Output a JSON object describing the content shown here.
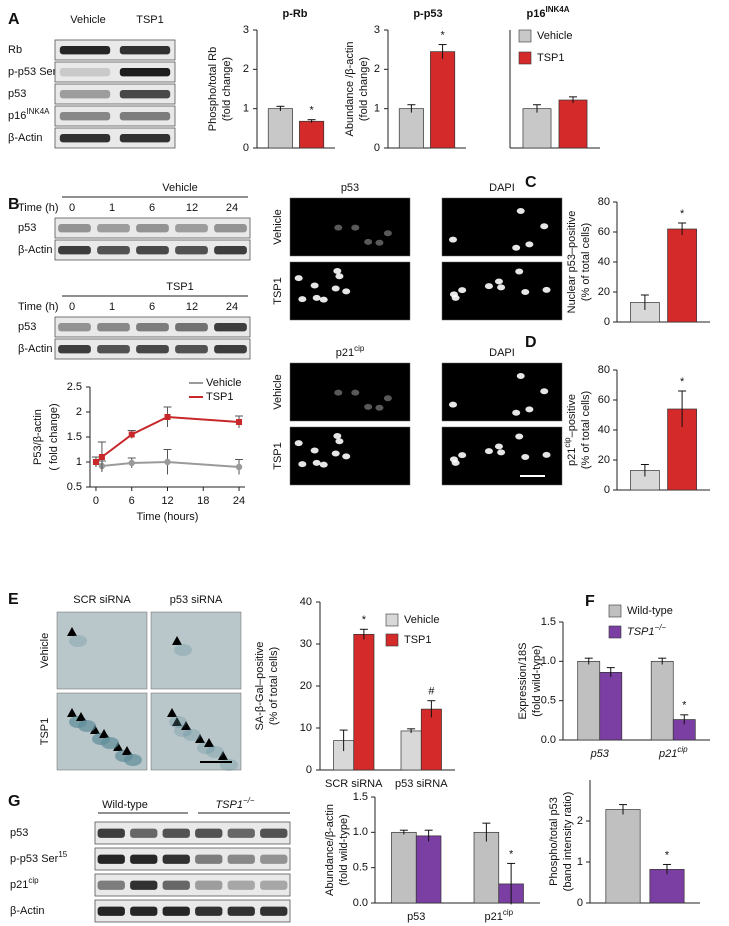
{
  "panel_labels": [
    "A",
    "B",
    "C",
    "D",
    "E",
    "F",
    "G"
  ],
  "blot_A": {
    "columns": [
      "Vehicle",
      "TSP1"
    ],
    "rows": [
      "Rb",
      {
        "text": "p-p53 Ser",
        "sup": "15"
      },
      "p53",
      {
        "text": "p16",
        "sup": "INK4A"
      },
      "β-Actin"
    ]
  },
  "blot_B": {
    "groups": [
      {
        "title": "Vehicle",
        "time_label": "Time (h)",
        "times": [
          "0",
          "1",
          "6",
          "12",
          "24"
        ],
        "rows": [
          "p53",
          "β-Actin"
        ]
      },
      {
        "title": "TSP1",
        "time_label": "Time (h)",
        "times": [
          "0",
          "1",
          "6",
          "12",
          "24"
        ],
        "rows": [
          "p53",
          "β-Actin"
        ]
      }
    ]
  },
  "micrographs_C": {
    "columns": [
      "p53",
      "DAPI"
    ],
    "rows": [
      "Vehicle",
      "TSP1"
    ]
  },
  "micrographs_D": {
    "columns": [
      {
        "text": "p21",
        "sup": "cip"
      },
      "DAPI"
    ],
    "rows": [
      "Vehicle",
      "TSP1"
    ]
  },
  "micrographs_E": {
    "columns": [
      "SCR siRNA",
      "p53 siRNA"
    ],
    "rows": [
      "Vehicle",
      "TSP1"
    ]
  },
  "blot_G": {
    "groups": [
      "Wild-type",
      {
        "text": "TSP1",
        "sup": "−/−"
      }
    ],
    "rows": [
      "p53",
      {
        "text": "p-p53 Ser",
        "sup": "15"
      },
      {
        "text": "p21",
        "sup": "cip"
      },
      "β-Actin"
    ]
  },
  "chart_data": [
    {
      "type": "bar",
      "title": "p-Rb",
      "ylabel": [
        "Phospho/total Rb",
        "(fold change)"
      ],
      "ylim": [
        0,
        3
      ],
      "yticks": [
        0,
        1,
        2,
        3
      ],
      "values": [
        1.0,
        0.68
      ],
      "errors": [
        0.06,
        0.04
      ],
      "colors": [
        "#c8c8c8",
        "#d42a2a"
      ],
      "significance": [
        null,
        "*"
      ]
    },
    {
      "type": "bar",
      "title": "p-p53",
      "ylabel": [
        "Abundance /β-actin",
        "(fold change)"
      ],
      "ylim": [
        0,
        3
      ],
      "yticks": [
        0,
        1,
        2,
        3
      ],
      "values": [
        1.0,
        2.45
      ],
      "errors": [
        0.1,
        0.18
      ],
      "colors": [
        "#c8c8c8",
        "#d42a2a"
      ],
      "significance": [
        null,
        "*"
      ]
    },
    {
      "type": "bar",
      "title": {
        "text": "p16",
        "sup": "INK4A"
      },
      "ylim": [
        0,
        3
      ],
      "values": [
        1.0,
        1.22
      ],
      "errors": [
        0.1,
        0.08
      ],
      "colors": [
        "#c8c8c8",
        "#d42a2a"
      ],
      "legend": [
        {
          "name": "Vehicle",
          "color": "#c8c8c8"
        },
        {
          "name": "TSP1",
          "color": "#d42a2a"
        }
      ]
    },
    {
      "type": "line",
      "ylabel": [
        "P53/β-actin",
        "( fold change)"
      ],
      "xlabel": "Time (hours)",
      "x": [
        0,
        1,
        6,
        12,
        24
      ],
      "xlim": [
        -1,
        25
      ],
      "xticks": [
        0,
        6,
        12,
        18,
        24
      ],
      "ylim": [
        0.5,
        2.5
      ],
      "yticks": [
        0.5,
        1,
        1.5,
        2,
        2.5
      ],
      "series": [
        {
          "name": "Vehicle",
          "color": "#9a9a9a",
          "marker": "circle",
          "values": [
            1.0,
            0.92,
            0.98,
            1.0,
            0.9
          ],
          "errors": [
            0.1,
            0.1,
            0.1,
            0.25,
            0.15
          ]
        },
        {
          "name": "TSP1",
          "color": "#c8282a",
          "marker": "square",
          "values": [
            1.0,
            1.1,
            1.55,
            1.9,
            1.8
          ],
          "errors": [
            0.1,
            0.3,
            0.08,
            0.2,
            0.12
          ]
        }
      ]
    },
    {
      "type": "bar",
      "ylabel": [
        "Nuclear p53–positive",
        "(% of total cells)"
      ],
      "ylim": [
        0,
        80
      ],
      "yticks": [
        0,
        20,
        40,
        60,
        80
      ],
      "values": [
        13,
        62
      ],
      "errors": [
        5,
        4
      ],
      "colors": [
        "#d8d8d8",
        "#d42a2a"
      ],
      "significance": [
        null,
        "*"
      ]
    },
    {
      "type": "bar",
      "ylabel": [
        {
          "text": "p21",
          "sup": "cip",
          "tail": "–positive"
        },
        "(% of total cells)"
      ],
      "ylim": [
        0,
        80
      ],
      "yticks": [
        0,
        20,
        40,
        60,
        80
      ],
      "values": [
        13,
        54
      ],
      "errors": [
        4,
        12
      ],
      "colors": [
        "#d8d8d8",
        "#d42a2a"
      ],
      "significance": [
        null,
        "*"
      ]
    },
    {
      "type": "bar",
      "ylabel": [
        "SA-β-Gal–positive",
        "(% of total cells)"
      ],
      "ylim": [
        0,
        40
      ],
      "yticks": [
        0,
        10,
        20,
        30,
        40
      ],
      "categories": [
        "SCR siRNA",
        "p53 siRNA"
      ],
      "series": [
        {
          "name": "Vehicle",
          "color": "#d8d8d8",
          "values": [
            7,
            9.3
          ],
          "errors": [
            2.5,
            0.5
          ],
          "significance": [
            null,
            null
          ]
        },
        {
          "name": "TSP1",
          "color": "#d42a2a",
          "values": [
            32.3,
            14.5
          ],
          "errors": [
            1.2,
            2
          ],
          "significance": [
            "*",
            "#"
          ]
        }
      ]
    },
    {
      "type": "bar",
      "ylabel": [
        "Expression/18S",
        "(fold wild-type)"
      ],
      "ylim": [
        0,
        1.5
      ],
      "yticks": [
        {
          "value": 0,
          "label": "0.0"
        },
        {
          "value": 0.5,
          "label": "0.5"
        },
        {
          "value": 1,
          "label": "1.0"
        },
        {
          "value": 1.5,
          "label": "1.5"
        }
      ],
      "categories": [
        "p53",
        {
          "text": "p21",
          "sup": "cip"
        }
      ],
      "series": [
        {
          "name": "Wild-type",
          "color": "#c0c0c0",
          "values": [
            1.0,
            1.0
          ],
          "errors": [
            0.04,
            0.04
          ],
          "significance": [
            null,
            null
          ]
        },
        {
          "name": {
            "text": "TSP1",
            "sup": "−/−"
          },
          "color": "#7b3fa3",
          "values": [
            0.86,
            0.26
          ],
          "errors": [
            0.06,
            0.06
          ],
          "significance": [
            null,
            "*"
          ]
        }
      ]
    },
    {
      "type": "bar",
      "ylabel": [
        "Abundance/β-actin",
        "(fold wild-type)"
      ],
      "ylim": [
        0,
        1.5
      ],
      "yticks": [
        {
          "value": 0,
          "label": "0.0"
        },
        {
          "value": 0.5,
          "label": "0.5"
        },
        {
          "value": 1,
          "label": "1.0"
        },
        {
          "value": 1.5,
          "label": "1.5"
        }
      ],
      "categories": [
        "p53",
        {
          "text": "p21",
          "sup": "cip"
        }
      ],
      "series": [
        {
          "color": "#c0c0c0",
          "values": [
            1.0,
            1.0
          ],
          "errors": [
            0.03,
            0.13
          ],
          "significance": [
            null,
            null
          ]
        },
        {
          "color": "#7b3fa3",
          "values": [
            0.95,
            0.27
          ],
          "errors": [
            0.08,
            0.29
          ],
          "significance": [
            null,
            "*"
          ]
        }
      ]
    },
    {
      "type": "bar",
      "ylabel": [
        "Phospho/total p53",
        "(band intensity ratio)"
      ],
      "ylim": [
        0,
        3
      ],
      "yticks": [
        0,
        1,
        2
      ],
      "values": [
        2.28,
        0.82
      ],
      "errors": [
        0.12,
        0.12
      ],
      "colors": [
        "#c0c0c0",
        "#7b3fa3"
      ],
      "significance": [
        null,
        "*"
      ]
    }
  ]
}
